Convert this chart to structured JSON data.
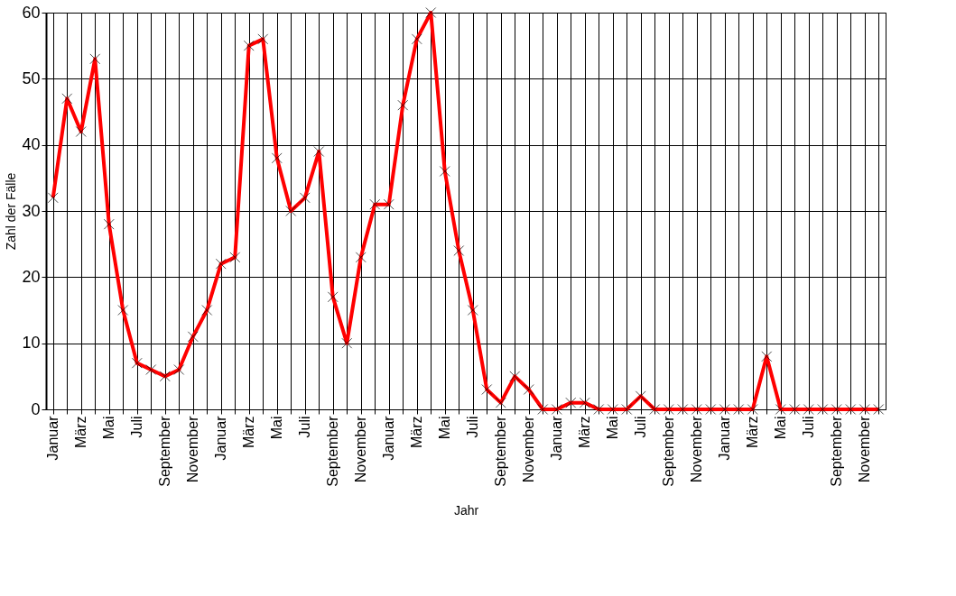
{
  "chart_data": {
    "type": "line",
    "xlabel": "Jahr",
    "ylabel": "Zahl der Fälle",
    "categories": [
      "Januar",
      null,
      "März",
      null,
      "Mai",
      null,
      "Juli",
      null,
      "September",
      null,
      "November",
      null,
      "Januar",
      null,
      "März",
      null,
      "Mai",
      null,
      "Juli",
      null,
      "September",
      null,
      "November",
      null,
      "Januar",
      null,
      "März",
      null,
      "Mai",
      null,
      "Juli",
      null,
      "September",
      null,
      "November",
      null,
      "Januar",
      null,
      "März",
      null,
      "Mai",
      null,
      "Juli",
      null,
      "September",
      null,
      "November",
      null,
      "Januar",
      null,
      "März",
      null,
      "Mai",
      null,
      "Juli",
      null,
      "September",
      null,
      "November",
      null
    ],
    "series": [
      {
        "color": "#ff0000",
        "values": [
          32,
          47,
          42,
          53,
          28,
          15,
          7,
          6,
          5,
          6,
          11,
          15,
          22,
          23,
          55,
          56,
          38,
          30,
          32,
          39,
          17,
          10,
          23,
          31,
          31,
          46,
          56,
          60,
          36,
          24,
          15,
          3,
          1,
          5,
          3,
          0,
          0,
          1,
          1,
          0,
          0,
          0,
          2,
          0,
          0,
          0,
          0,
          0,
          0,
          0,
          0,
          8,
          0,
          0,
          0,
          0,
          0,
          0,
          0,
          0
        ]
      }
    ],
    "ylim": [
      0,
      60
    ],
    "yticks": [
      0,
      10,
      20,
      30,
      40,
      50,
      60
    ],
    "grid": true,
    "marker": "cross",
    "line_style": "solid"
  }
}
